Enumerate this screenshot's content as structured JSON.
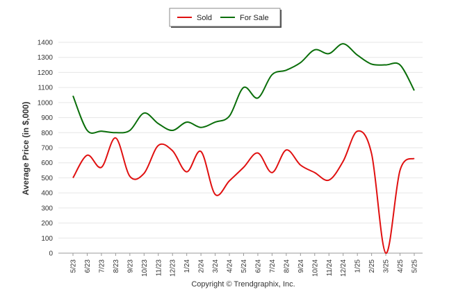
{
  "chart_data": {
    "type": "line",
    "ylabel": "Average Price (in $,000)",
    "xlabel": "",
    "ylim": [
      0,
      1400
    ],
    "yticks": [
      0,
      100,
      200,
      300,
      400,
      500,
      600,
      700,
      800,
      900,
      1000,
      1100,
      1200,
      1300,
      1400
    ],
    "grid": true,
    "legend_position": "top-center",
    "categories": [
      "5/23",
      "6/23",
      "7/23",
      "8/23",
      "9/23",
      "10/23",
      "11/23",
      "12/23",
      "1/24",
      "2/24",
      "3/24",
      "4/24",
      "5/24",
      "6/24",
      "7/24",
      "8/24",
      "9/24",
      "10/24",
      "11/24",
      "12/24",
      "1/25",
      "2/25",
      "3/25",
      "4/25",
      "5/25"
    ],
    "series": [
      {
        "name": "Sold",
        "color": "#e01010",
        "values": [
          500,
          650,
          570,
          765,
          510,
          530,
          715,
          680,
          540,
          675,
          390,
          480,
          570,
          665,
          535,
          685,
          585,
          535,
          485,
          610,
          810,
          660,
          0,
          550,
          630
        ]
      },
      {
        "name": "For Sale",
        "color": "#0a6e0a",
        "values": [
          1045,
          815,
          810,
          800,
          815,
          930,
          860,
          815,
          870,
          835,
          870,
          910,
          1100,
          1030,
          1185,
          1215,
          1265,
          1350,
          1325,
          1390,
          1315,
          1255,
          1250,
          1250,
          1080
        ]
      }
    ],
    "credit": "Copyright © Trendgraphix, Inc."
  }
}
